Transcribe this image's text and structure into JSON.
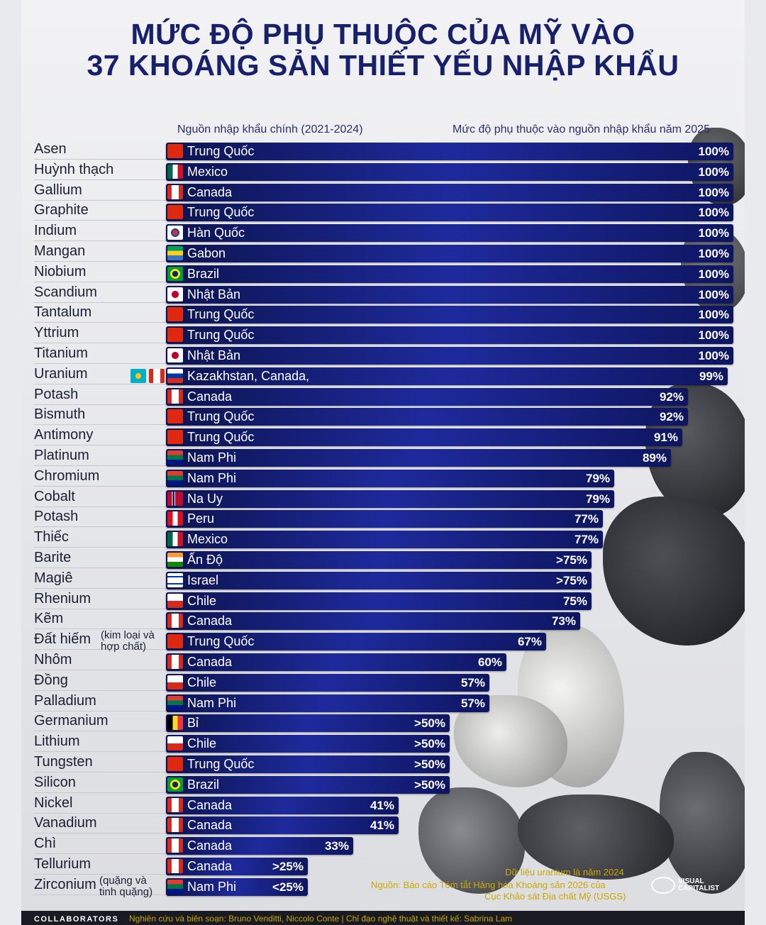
{
  "title": {
    "line1": "MỨC ĐỘ PHỤ THUỘC CỦA MỸ VÀO",
    "line2": "37 KHOÁNG SẢN THIẾT YẾU NHẬP KHẨU"
  },
  "headers": {
    "source": "Nguồn nhập khẩu chính (2021-2024)",
    "dependency": "Mức độ phụ thuộc vào nguồn nhập khẩu năm 2025"
  },
  "chart_data": {
    "type": "bar",
    "orientation": "horizontal",
    "xlim": [
      0,
      100
    ],
    "rows": [
      {
        "mineral": "Asen",
        "country": "Trung Quốc",
        "flags": [
          "cn"
        ],
        "value": 100,
        "label": "100%"
      },
      {
        "mineral": "Huỳnh thạch",
        "country": "Mexico",
        "flags": [
          "mx"
        ],
        "value": 100,
        "label": "100%"
      },
      {
        "mineral": "Gallium",
        "country": "Canada",
        "flags": [
          "ca"
        ],
        "value": 100,
        "label": "100%"
      },
      {
        "mineral": "Graphite",
        "country": "Trung Quốc",
        "flags": [
          "cn"
        ],
        "value": 100,
        "label": "100%"
      },
      {
        "mineral": "Indium",
        "country": "Hàn Quốc",
        "flags": [
          "kr"
        ],
        "value": 100,
        "label": "100%"
      },
      {
        "mineral": "Mangan",
        "country": "Gabon",
        "flags": [
          "ga"
        ],
        "value": 100,
        "label": "100%"
      },
      {
        "mineral": "Niobium",
        "country": "Brazil",
        "flags": [
          "br"
        ],
        "value": 100,
        "label": "100%"
      },
      {
        "mineral": "Scandium",
        "country": "Nhật Bản",
        "flags": [
          "jp"
        ],
        "value": 100,
        "label": "100%"
      },
      {
        "mineral": "Tantalum",
        "country": "Trung Quốc",
        "flags": [
          "cn"
        ],
        "value": 100,
        "label": "100%"
      },
      {
        "mineral": "Yttrium",
        "country": "Trung Quốc",
        "flags": [
          "cn"
        ],
        "value": 100,
        "label": "100%"
      },
      {
        "mineral": "Titanium",
        "country": "Nhật Bản",
        "flags": [
          "jp"
        ],
        "value": 100,
        "label": "100%"
      },
      {
        "mineral": "Uranium",
        "country": "Kazakhstan, Canada,",
        "flags": [
          "kz",
          "ca",
          "ru"
        ],
        "value": 99,
        "label": "99%"
      },
      {
        "mineral": "Potash",
        "country": "Canada",
        "flags": [
          "ca"
        ],
        "value": 92,
        "label": "92%"
      },
      {
        "mineral": "Bismuth",
        "country": "Trung Quốc",
        "flags": [
          "cn"
        ],
        "value": 92,
        "label": "92%"
      },
      {
        "mineral": "Antimony",
        "country": "Trung Quốc",
        "flags": [
          "cn"
        ],
        "value": 91,
        "label": "91%"
      },
      {
        "mineral": "Platinum",
        "country": "Nam Phi",
        "flags": [
          "za"
        ],
        "value": 89,
        "label": "89%"
      },
      {
        "mineral": "Chromium",
        "country": "Nam Phi",
        "flags": [
          "za"
        ],
        "value": 79,
        "label": "79%"
      },
      {
        "mineral": "Cobalt",
        "country": "Na Uy",
        "flags": [
          "no"
        ],
        "value": 79,
        "label": "79%"
      },
      {
        "mineral": "Potash",
        "country": "Peru",
        "flags": [
          "pe"
        ],
        "value": 77,
        "label": "77%"
      },
      {
        "mineral": "Thiếc",
        "country": "Mexico",
        "flags": [
          "mx"
        ],
        "value": 77,
        "label": "77%"
      },
      {
        "mineral": "Barite",
        "country": "Ấn Độ",
        "flags": [
          "in"
        ],
        "value": 75,
        "label": ">75%"
      },
      {
        "mineral": "Magiê",
        "country": "Israel",
        "flags": [
          "il"
        ],
        "value": 75,
        "label": ">75%"
      },
      {
        "mineral": "Rhenium",
        "country": "Chile",
        "flags": [
          "cl"
        ],
        "value": 75,
        "label": "75%"
      },
      {
        "mineral": "Kẽm",
        "country": "Canada",
        "flags": [
          "ca"
        ],
        "value": 73,
        "label": "73%"
      },
      {
        "mineral": "Đất hiếm",
        "note": "(kim loại và hợp chất)",
        "country": "Trung Quốc",
        "flags": [
          "cn"
        ],
        "value": 67,
        "label": "67%"
      },
      {
        "mineral": "Nhôm",
        "country": "Canada",
        "flags": [
          "ca"
        ],
        "value": 60,
        "label": "60%"
      },
      {
        "mineral": "Đồng",
        "country": "Chile",
        "flags": [
          "cl"
        ],
        "value": 57,
        "label": "57%"
      },
      {
        "mineral": "Palladium",
        "country": "Nam Phi",
        "flags": [
          "za"
        ],
        "value": 57,
        "label": "57%"
      },
      {
        "mineral": "Germanium",
        "country": "Bỉ",
        "flags": [
          "be"
        ],
        "value": 50,
        "label": ">50%"
      },
      {
        "mineral": "Lithium",
        "country": "Chile",
        "flags": [
          "cl"
        ],
        "value": 50,
        "label": ">50%"
      },
      {
        "mineral": "Tungsten",
        "country": "Trung Quốc",
        "flags": [
          "cn"
        ],
        "value": 50,
        "label": ">50%"
      },
      {
        "mineral": "Silicon",
        "country": "Brazil",
        "flags": [
          "br"
        ],
        "value": 50,
        "label": ">50%"
      },
      {
        "mineral": "Nickel",
        "country": "Canada",
        "flags": [
          "ca"
        ],
        "value": 41,
        "label": "41%"
      },
      {
        "mineral": "Vanadium",
        "country": "Canada",
        "flags": [
          "ca"
        ],
        "value": 41,
        "label": "41%"
      },
      {
        "mineral": "Chì",
        "country": "Canada",
        "flags": [
          "ca"
        ],
        "value": 33,
        "label": "33%"
      },
      {
        "mineral": "Tellurium",
        "country": "Canada",
        "flags": [
          "ca"
        ],
        "value": 25,
        "label": ">25%"
      },
      {
        "mineral": "Zirconium",
        "note": "(quặng và tinh quặng)",
        "country": "Nam Phi",
        "flags": [
          "za"
        ],
        "value": 25,
        "label": "<25%"
      }
    ]
  },
  "footer": {
    "note1": "Dữ liệu uranium là năm 2024",
    "note2": "Nguồn: Báo cáo Tóm tắt Hàng hóa Khoáng sản 2026 của",
    "note3": "Cục Khảo sát Địa chất Mỹ (USGS)",
    "collaborators": "COLLABORATORS",
    "credits": "Nghiên cứu và biên soạn: Bruno Venditti, Niccolo Conte | Chỉ đạo nghệ thuật và thiết kế: Sabrina Lam",
    "logo_line1": "VISUAL",
    "logo_line2": "CAPITALIST"
  },
  "colors": {
    "title": "#17206b",
    "bar_dark": "#0c1450",
    "bar_light": "#1e2a9c",
    "footer_text": "#c9a900"
  }
}
